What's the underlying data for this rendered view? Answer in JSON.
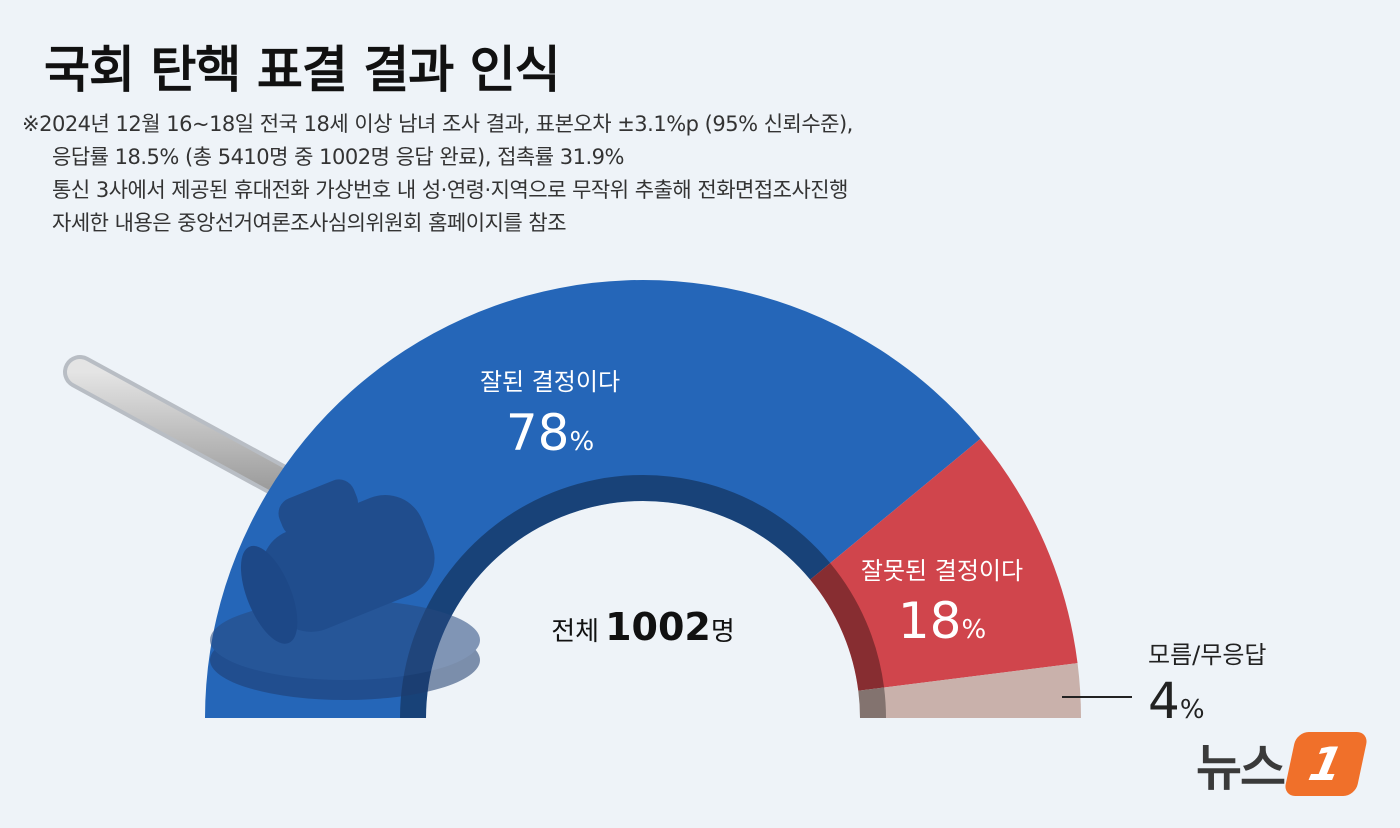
{
  "title": "국회 탄핵 표결 결과 인식",
  "notes": [
    "※2024년 12월 16~18일 전국 18세 이상 남녀 조사 결과, 표본오차 ±3.1%p (95% 신뢰수준),",
    "응답률 18.5% (총 5410명 중 1002명 응답 완료), 접촉률 31.9%",
    "통신 3사에서 제공된 휴대전화 가상번호 내 성·연령·지역으로 무작위 추출해 전화면접조사진행",
    "자세한 내용은 중앙선거여론조사심의위원회 홈페이지를 참조"
  ],
  "chart_data": {
    "type": "pie",
    "shape": "semicircle-donut",
    "center_label": {
      "prefix": "전체",
      "number": "1002",
      "suffix": "명"
    },
    "slices": [
      {
        "label": "잘된 결정이다",
        "value": 78,
        "unit": "%",
        "color": "#2566b8"
      },
      {
        "label": "잘못된 결정이다",
        "value": 18,
        "unit": "%",
        "color": "#d0454c"
      },
      {
        "label": "모름/무응답",
        "value": 4,
        "unit": "%",
        "color": "#c9b1ab"
      }
    ]
  },
  "logo": {
    "text": "뉴스",
    "mark": "1",
    "icon": "news1-logo-icon"
  },
  "illustration": {
    "icon": "gavel-icon"
  }
}
